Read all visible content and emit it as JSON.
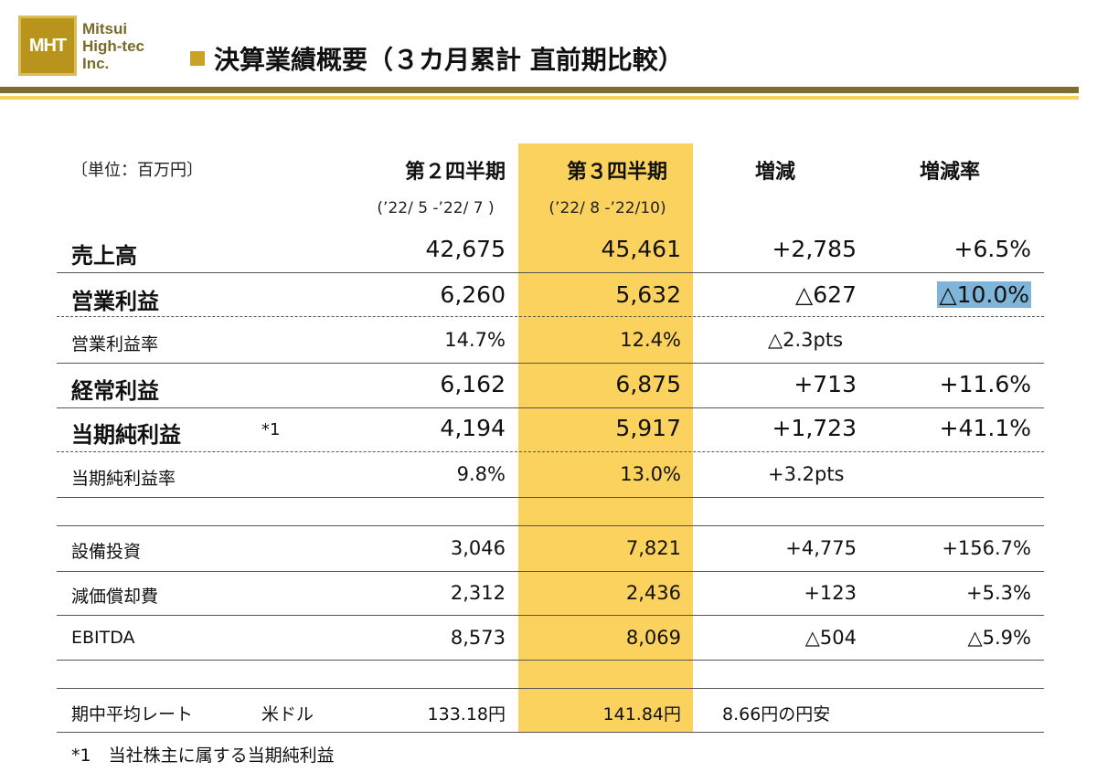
{
  "header": {
    "logo_mark": "MHT",
    "logo_lines": [
      "Mitsui",
      "High-tec",
      "Inc."
    ],
    "title": "決算業績概要（３カ月累計 直前期比較）"
  },
  "table": {
    "unit_label": "〔単位：百万円〕",
    "columns": {
      "q2": "第２四半期",
      "q3": "第３四半期",
      "change": "増減",
      "change_rate": "増減率"
    },
    "periods": {
      "q2": "(’22/ 5 -’22/ 7 )",
      "q3": "(’22/ 8 -’22/10)"
    },
    "rows": [
      {
        "label": "売上高",
        "q2": "42,675",
        "q3": "45,461",
        "change": "+2,785",
        "rate": "+6.5%"
      },
      {
        "label": "営業利益",
        "q2": "6,260",
        "q3": "5,632",
        "change": "△627",
        "rate": "△10.0%"
      },
      {
        "label": "営業利益率",
        "q2": "14.7%",
        "q3": "12.4%",
        "change": "△2.3pts",
        "rate": ""
      },
      {
        "label": "経常利益",
        "q2": "6,162",
        "q3": "6,875",
        "change": "+713",
        "rate": "+11.6%"
      },
      {
        "label": "当期純利益",
        "note": "*1",
        "q2": "4,194",
        "q3": "5,917",
        "change": "+1,723",
        "rate": "+41.1%"
      },
      {
        "label": "当期純利益率",
        "q2": "9.8%",
        "q3": "13.0%",
        "change": "+3.2pts",
        "rate": ""
      },
      {
        "label": "設備投資",
        "q2": "3,046",
        "q3": "7,821",
        "change": "+4,775",
        "rate": "+156.7%"
      },
      {
        "label": "減価償却費",
        "q2": "2,312",
        "q3": "2,436",
        "change": "+123",
        "rate": "+5.3%"
      },
      {
        "label": "EBITDA",
        "q2": "8,573",
        "q3": "8,069",
        "change": "△504",
        "rate": "△5.9%"
      },
      {
        "label": "期中平均レート",
        "note": "米ドル",
        "q2": "133.18円",
        "q3": "141.84円",
        "change": "8.66円の円安",
        "rate": ""
      }
    ]
  },
  "footnote": "*1　当社株主に属する当期純利益",
  "colors": {
    "highlight_column": "#fcd25e",
    "negative_highlight": "#7fb5d8",
    "rule_dark": "#7d6d2c",
    "rule_light": "#f2d35a",
    "logo": "#b8941c"
  }
}
